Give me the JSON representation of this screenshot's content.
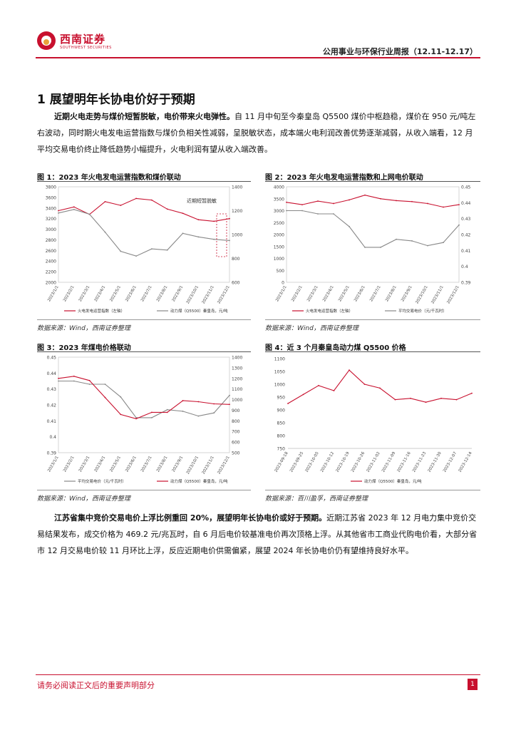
{
  "header": {
    "brand_cn": "西南证券",
    "brand_en": "SOUTHWEST SECURITIES",
    "report_title": "公用事业与环保行业周报（12.11-12.17）"
  },
  "section": {
    "heading": "1 展望明年长协电价好于预期"
  },
  "para1": {
    "bold": "近期火电走势与煤价短暂脱敏，电价带来火电弹性。",
    "text": "自 11 月中旬至今秦皇岛 Q5500 煤价中枢趋稳，煤价在 950 元/吨左右波动，同时期火电发电运营指数与煤价负相关性减弱，呈脱敏状态，成本端火电利润改善优势逐渐减弱，从收入端看，12 月平均交易电价终止降低趋势小幅提升，火电利润有望从收入端改善。"
  },
  "para2": {
    "bold": "江苏省集中竞价交易电价上浮比例重回 20%，展望明年长协电价或好于预期。",
    "text": "近期江苏省 2023 年 12 月电力集中竞价交易结果发布，成交价格为 469.2 元/兆瓦时，自 6 月后电价较基准电价再次顶格上浮。从其他省市工商业代购电价看，大部分省市 12 月交易电价较 11 月环比上浮，反应近期电价供需偏紧，展望 2024 年长协电价仍有望维持良好水平。"
  },
  "figures": [
    {
      "title": "图 1：2023 年火电发电运营指数和煤价联动",
      "source": "数据来源：Wind，西南证券整理"
    },
    {
      "title": "图 2：2023 年火电发电运营指数和上网电价联动",
      "source": "数据来源：Wind，西南证券整理"
    },
    {
      "title": "图 3：2023 年煤电价格联动",
      "source": "数据来源：Wind，西南证券整理"
    },
    {
      "title": "图 4：近 3 个月秦皇岛动力煤 Q5500 价格",
      "source": "数据来源：百川盈孚，西南证券整理"
    }
  ],
  "chart_data": [
    {
      "type": "line",
      "title": "2023 年火电发电运营指数和煤价联动",
      "annotation": "近期短暂脱敏",
      "x": [
        "2023/1/1",
        "2023/2/1",
        "2023/3/1",
        "2023/4/1",
        "2023/5/1",
        "2023/6/1",
        "2023/7/1",
        "2023/8/1",
        "2023/9/1",
        "2023/10/1",
        "2023/11/1",
        "2023/12/1"
      ],
      "left_axis": {
        "ylim": [
          2000,
          3800
        ],
        "ticks": [
          "3800",
          "3600",
          "3400",
          "3200",
          "3000",
          "2800",
          "2600",
          "2400",
          "2200",
          "2000"
        ]
      },
      "right_axis": {
        "ylim": [
          600,
          1400
        ],
        "ticks": [
          "1400",
          "1200",
          "1000",
          "800",
          "600"
        ]
      },
      "series": [
        {
          "name": "火电发电运营指数（左轴）",
          "axis": "left",
          "color": "#c8102e",
          "values": [
            3350,
            3420,
            3280,
            3520,
            3450,
            3580,
            3550,
            3380,
            3300,
            3180,
            3150,
            3200
          ]
        },
        {
          "name": "动力煤（Q5500）秦皇岛，元/吨",
          "axis": "right",
          "color": "#888888",
          "values": [
            1180,
            1210,
            1170,
            1020,
            860,
            820,
            880,
            870,
            1010,
            980,
            960,
            950
          ]
        }
      ]
    },
    {
      "type": "line",
      "title": "2023 年火电发电运营指数和上网电价联动",
      "x": [
        "2023/1/1",
        "2023/2/1",
        "2023/3/1",
        "2023/4/1",
        "2023/5/1",
        "2023/6/1",
        "2023/7/1",
        "2023/8/1",
        "2023/9/1",
        "2023/10/1",
        "2023/11/1",
        "2023/12/1"
      ],
      "left_axis": {
        "ylim": [
          0,
          4000
        ],
        "ticks": [
          "4000",
          "3500",
          "3000",
          "2500",
          "2000",
          "1500",
          "1000",
          "500",
          "0"
        ]
      },
      "right_axis": {
        "ylim": [
          0.39,
          0.45
        ],
        "ticks": [
          "0.45",
          "0.44",
          "0.43",
          "0.42",
          "0.41",
          "0.4",
          "0.39"
        ]
      },
      "series": [
        {
          "name": "火电发电运营指数（左轴）",
          "axis": "left",
          "color": "#c8102e",
          "values": [
            3350,
            3250,
            3400,
            3300,
            3450,
            3650,
            3500,
            3420,
            3380,
            3300,
            3150,
            3250
          ]
        },
        {
          "name": "平均交易电价（元/千瓦时）",
          "axis": "right",
          "color": "#888888",
          "values": [
            0.435,
            0.435,
            0.433,
            0.433,
            0.425,
            0.412,
            0.412,
            0.417,
            0.416,
            0.413,
            0.415,
            0.426
          ]
        }
      ]
    },
    {
      "type": "line",
      "title": "2023 年煤电价格联动",
      "x": [
        "2023/1/1",
        "2023/2/1",
        "2023/3/1",
        "2023/4/1",
        "2023/5/1",
        "2023/6/1",
        "2023/7/1",
        "2023/8/1",
        "2023/9/1",
        "2023/10/1",
        "2023/11/1",
        "2023/12/1"
      ],
      "left_axis": {
        "ylim": [
          0.39,
          0.45
        ],
        "ticks": [
          "0.45",
          "0.44",
          "0.43",
          "0.42",
          "0.41",
          "0.4",
          "0.39"
        ]
      },
      "right_axis": {
        "ylim": [
          500,
          1400
        ],
        "ticks": [
          "1400",
          "1300",
          "1200",
          "1100",
          "1000",
          "900",
          "800",
          "700",
          "600",
          "500"
        ]
      },
      "series": [
        {
          "name": "平均交易电价（元/千瓦时）",
          "axis": "left",
          "color": "#888888",
          "values": [
            0.435,
            0.435,
            0.433,
            0.433,
            0.425,
            0.412,
            0.412,
            0.417,
            0.416,
            0.413,
            0.415,
            0.426
          ]
        },
        {
          "name": "动力煤（Q5500）秦皇岛，元/吨",
          "axis": "right",
          "color": "#c8102e",
          "values": [
            1200,
            1220,
            1180,
            1020,
            860,
            820,
            880,
            880,
            990,
            980,
            960,
            955
          ]
        }
      ]
    },
    {
      "type": "line",
      "title": "近 3 个月秦皇岛动力煤 Q5500 价格",
      "x": [
        "2023-09-18",
        "2023-09-25",
        "2023-10-05",
        "2023-10-12",
        "2023-10-19",
        "2023-10-26",
        "2023-11-02",
        "2023-11-09",
        "2023-11-16",
        "2023-11-23",
        "2023-11-30",
        "2023-12-07",
        "2023-12-14"
      ],
      "ylim": [
        750,
        1100
      ],
      "ticks": [
        "1100",
        "1050",
        "1000",
        "950",
        "900",
        "850",
        "800",
        "750"
      ],
      "series": [
        {
          "name": "动力煤（Q5500）秦皇岛，元/吨",
          "color": "#c8102e",
          "values": [
            925,
            960,
            995,
            975,
            1055,
            1000,
            985,
            940,
            945,
            930,
            945,
            940,
            965
          ]
        }
      ]
    }
  ],
  "footer": {
    "disclaimer": "请务必阅读正文后的重要声明部分",
    "page": "1"
  }
}
